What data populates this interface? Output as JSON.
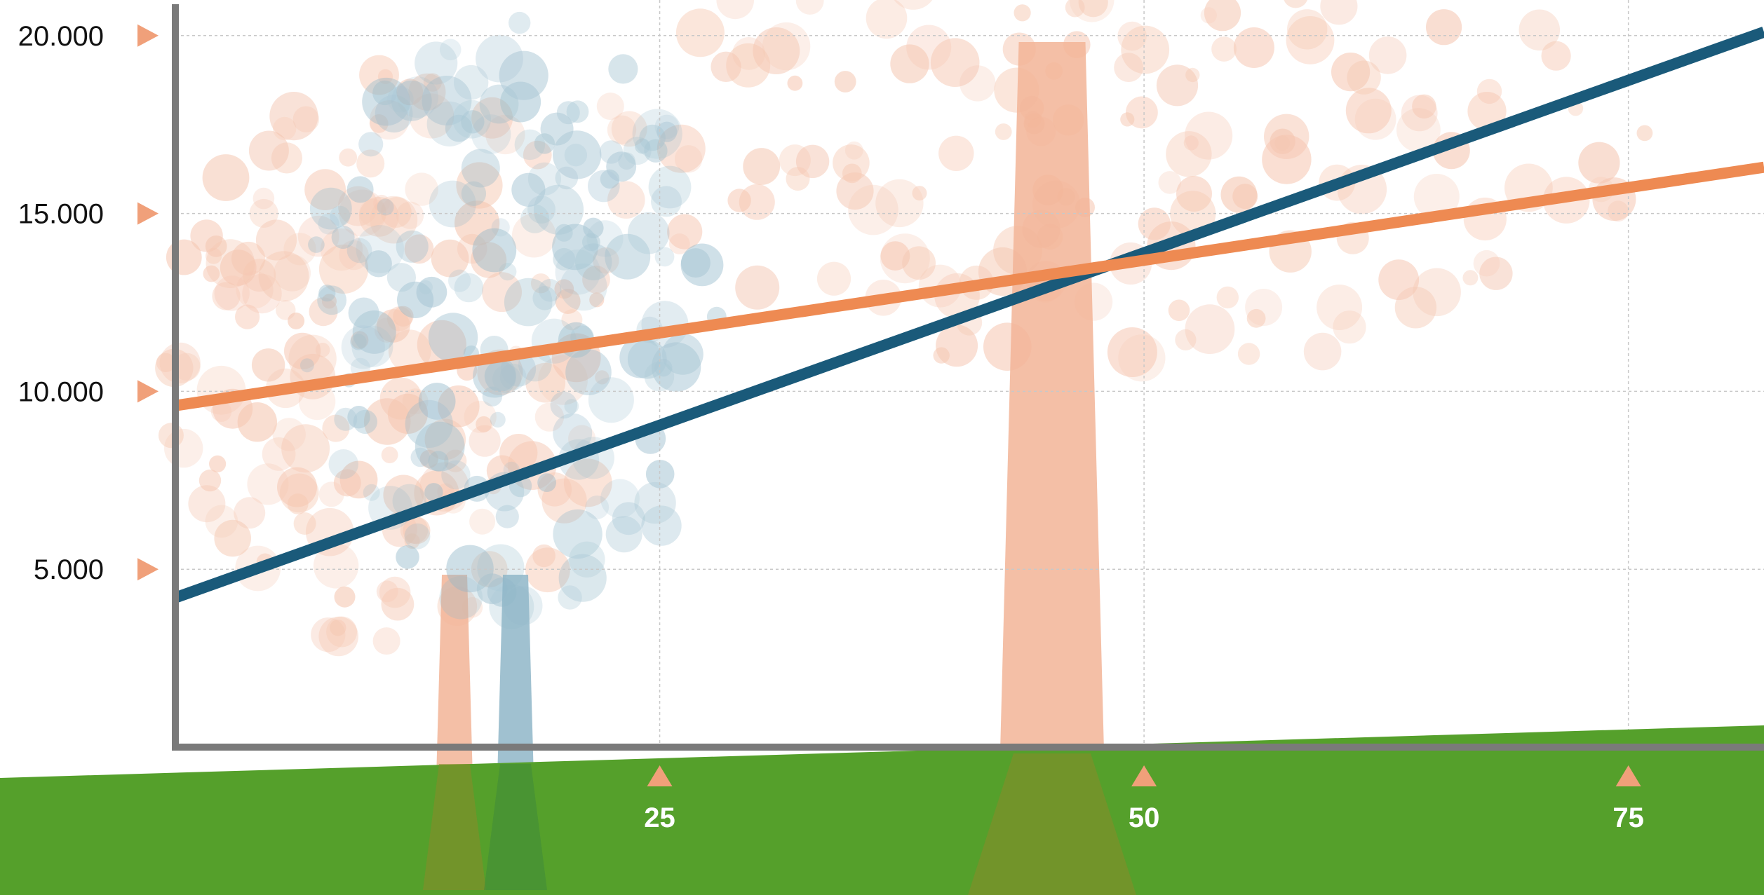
{
  "chart_data": {
    "type": "line",
    "title": "",
    "xlabel": "",
    "ylabel": "",
    "xlim": [
      0,
      82
    ],
    "ylim": [
      0,
      21000
    ],
    "grid": true,
    "x_ticks": [
      {
        "value": 25,
        "label": "25"
      },
      {
        "value": 50,
        "label": "50"
      },
      {
        "value": 75,
        "label": "75"
      }
    ],
    "y_ticks": [
      {
        "value": 5000,
        "label": "5.000"
      },
      {
        "value": 10000,
        "label": "10.000"
      },
      {
        "value": 15000,
        "label": "15.000"
      },
      {
        "value": 20000,
        "label": "20.000"
      }
    ],
    "series": [
      {
        "color": "#1a5a7a",
        "x": [
          0,
          82
        ],
        "y": [
          4200,
          20100
        ]
      },
      {
        "color": "#ee8a52",
        "x": [
          0,
          82
        ],
        "y": [
          9600,
          16300
        ]
      }
    ],
    "colors": {
      "axis": "#7a7a7a",
      "ground": "#55a02b",
      "tick_marker": "#f0a07a",
      "tree_orange": "#f2b497",
      "tree_blue": "#8fb6c8"
    },
    "icons": [
      "tree-illustration",
      "tick-triangle-marker"
    ]
  }
}
